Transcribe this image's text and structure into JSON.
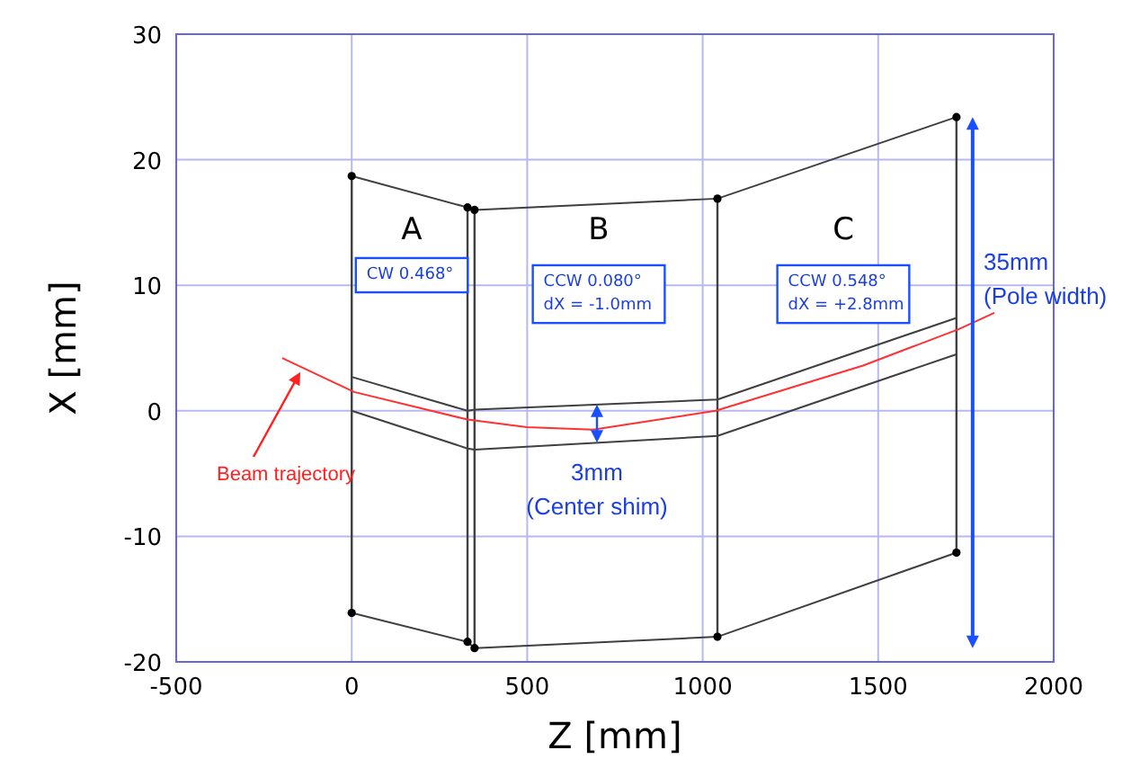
{
  "chart_data": {
    "type": "line",
    "xlabel": "Z [mm]",
    "ylabel": "X [mm]",
    "xlim": [
      -500,
      2000
    ],
    "xticks": [
      -500,
      0,
      500,
      1000,
      1500,
      2000
    ],
    "ylim": [
      -20,
      30
    ],
    "yticks": [
      -20,
      -10,
      0,
      10,
      20,
      30
    ],
    "grid": true,
    "series": [
      {
        "color": "#404040",
        "marker": "circle",
        "x": [
          0,
          330,
          350,
          1042,
          1723
        ],
        "values": [
          18.7,
          16.2,
          16.0,
          16.9,
          23.4
        ],
        "errors": [
          [
            -16.1,
            18.7
          ],
          [
            -18.4,
            16.2
          ],
          [
            -18.9,
            16.0
          ],
          [
            -18.0,
            16.9
          ],
          [
            -11.3,
            23.4
          ]
        ]
      },
      {
        "color": "#404040",
        "marker": "circle",
        "x": [
          0,
          330,
          350,
          1042,
          1723
        ],
        "values": [
          -16.1,
          -18.4,
          -18.9,
          -18.0,
          -11.3
        ]
      },
      {
        "color": "#404040",
        "marker": "none",
        "x": [
          0,
          330,
          350,
          1042,
          1723
        ],
        "values": [
          2.7,
          0.0,
          0.1,
          0.9,
          7.4
        ]
      },
      {
        "color": "#404040",
        "marker": "none",
        "x": [
          0,
          330,
          350,
          1042,
          1723
        ],
        "values": [
          0.0,
          -3.0,
          -3.1,
          -2.0,
          4.5
        ]
      },
      {
        "color": "#ff3030",
        "marker": "none",
        "x": [
          -198,
          7,
          330,
          499,
          688,
          1037,
          1457,
          1729,
          1831
        ],
        "values": [
          4.2,
          1.5,
          -0.7,
          -1.3,
          -1.5,
          0.0,
          3.6,
          6.5,
          7.8
        ]
      }
    ],
    "annotations": [
      "A",
      "CW 0.468°",
      "B",
      "CCW 0.080°\ndX = -1.0mm",
      "C",
      "CCW 0.548°\ndX = +2.8mm",
      "3mm\n(Center shim)",
      "35mm\n(Pole width)",
      "Beam trajectory"
    ]
  }
}
